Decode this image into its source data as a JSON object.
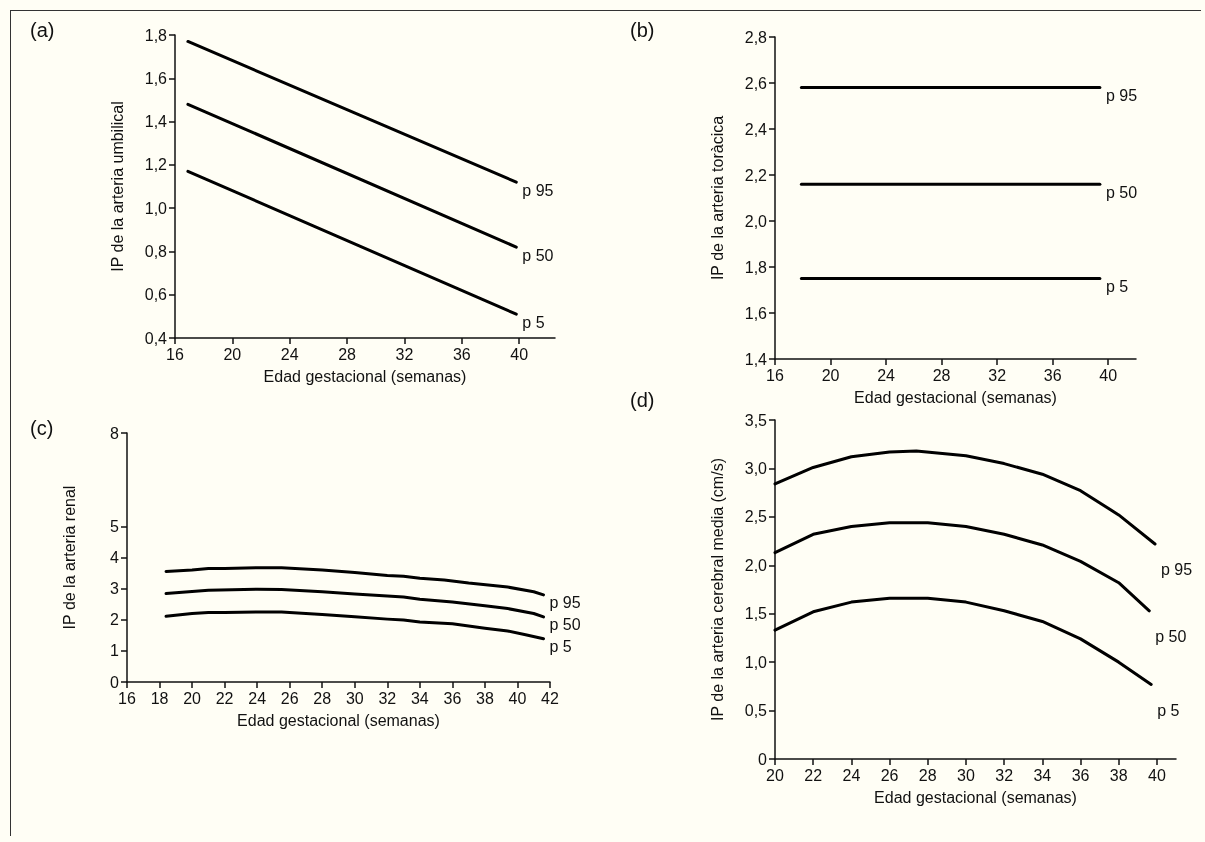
{
  "chart_data": [
    {
      "type": "line",
      "title": "(a)",
      "xlabel": "Edad gestacional (semanas)",
      "ylabel": "IP de la arteria umbilical",
      "xlim": [
        16,
        42.5
      ],
      "xticks": [
        16,
        20,
        24,
        28,
        32,
        36,
        40
      ],
      "ylim": [
        0.4,
        1.8
      ],
      "yticks": [
        {
          "value": 0.4,
          "label": "0,4"
        },
        {
          "value": 0.6,
          "label": "0,6"
        },
        {
          "value": 0.8,
          "label": "0,8"
        },
        {
          "value": 1.0,
          "label": "1,0"
        },
        {
          "value": 1.2,
          "label": "1,2"
        },
        {
          "value": 1.4,
          "label": "1,4"
        },
        {
          "value": 1.6,
          "label": "1,6"
        },
        {
          "value": 1.8,
          "label": "1,8"
        }
      ],
      "grid": false,
      "legend": false,
      "marker": "none",
      "line_style": "solid",
      "series": [
        {
          "name": "p 95",
          "color": "#000000",
          "x": [
            16.9,
            39.8
          ],
          "values": [
            1.77,
            1.12
          ]
        },
        {
          "name": "p 50",
          "color": "#000000",
          "x": [
            16.9,
            39.8
          ],
          "values": [
            1.48,
            0.82
          ]
        },
        {
          "name": "p 5",
          "color": "#000000",
          "x": [
            16.9,
            39.8
          ],
          "values": [
            1.17,
            0.51
          ]
        }
      ]
    },
    {
      "type": "line",
      "title": "(b)",
      "xlabel": "Edad gestacional (semanas)",
      "ylabel": "IP de la arteria toràcica",
      "xlim": [
        16,
        42
      ],
      "xticks": [
        16,
        20,
        24,
        28,
        32,
        36,
        40
      ],
      "ylim": [
        1.4,
        2.8
      ],
      "yticks": [
        {
          "value": 1.4,
          "label": "1,4"
        },
        {
          "value": 1.6,
          "label": "1,6"
        },
        {
          "value": 1.8,
          "label": "1,8"
        },
        {
          "value": 2.0,
          "label": "2,0"
        },
        {
          "value": 2.2,
          "label": "2,2"
        },
        {
          "value": 2.4,
          "label": "2,4"
        },
        {
          "value": 2.6,
          "label": "2,6"
        },
        {
          "value": 2.8,
          "label": "2,8"
        }
      ],
      "grid": false,
      "legend": false,
      "marker": "none",
      "line_style": "solid",
      "series": [
        {
          "name": "p 95",
          "color": "#000000",
          "x": [
            17.9,
            39.4
          ],
          "values": [
            2.58,
            2.58
          ]
        },
        {
          "name": "p 50",
          "color": "#000000",
          "x": [
            17.9,
            39.4
          ],
          "values": [
            2.16,
            2.16
          ]
        },
        {
          "name": "p 5",
          "color": "#000000",
          "x": [
            17.9,
            39.4
          ],
          "values": [
            1.75,
            1.75
          ]
        }
      ]
    },
    {
      "type": "line",
      "title": "(c)",
      "xlabel": "Edad gestacional (semanas)",
      "ylabel": "IP de la arteria renal",
      "xlim": [
        16,
        42
      ],
      "xticks": [
        16,
        18,
        20,
        22,
        24,
        26,
        28,
        30,
        32,
        34,
        36,
        38,
        40,
        42
      ],
      "ylim": [
        0,
        8
      ],
      "yticks": [
        0,
        1,
        2,
        3,
        4,
        5,
        8
      ],
      "grid": false,
      "legend": false,
      "marker": "none",
      "line_style": "solid",
      "series": [
        {
          "name": "p 95",
          "color": "#000000",
          "x": [
            18.4,
            20,
            21,
            22,
            24,
            25.5,
            28,
            30,
            32,
            33,
            34,
            35.5,
            37,
            39.4,
            41,
            41.6
          ],
          "values": [
            3.55,
            3.6,
            3.65,
            3.65,
            3.67,
            3.67,
            3.6,
            3.52,
            3.42,
            3.4,
            3.33,
            3.28,
            3.18,
            3.05,
            2.9,
            2.8
          ]
        },
        {
          "name": "p 50",
          "color": "#000000",
          "x": [
            18.4,
            21,
            24,
            25.5,
            28,
            30,
            32,
            33,
            34,
            36,
            38,
            39.4,
            41,
            41.6
          ],
          "values": [
            2.84,
            2.95,
            2.98,
            2.97,
            2.9,
            2.83,
            2.76,
            2.73,
            2.66,
            2.57,
            2.45,
            2.36,
            2.2,
            2.09
          ]
        },
        {
          "name": "p 5",
          "color": "#000000",
          "x": [
            18.4,
            20,
            21,
            22,
            24,
            25.5,
            28,
            30,
            32,
            33,
            34,
            36,
            38,
            39.4,
            40.5,
            41.6
          ],
          "values": [
            2.11,
            2.2,
            2.23,
            2.23,
            2.25,
            2.25,
            2.17,
            2.1,
            2.02,
            1.99,
            1.93,
            1.87,
            1.73,
            1.64,
            1.52,
            1.39
          ]
        }
      ]
    },
    {
      "type": "line",
      "title": "(d)",
      "xlabel": "Edad gestacional (semanas)",
      "ylabel": "IP de la arteria cerebral media (cm/s)",
      "xlim": [
        20,
        41
      ],
      "xticks": [
        20,
        22,
        24,
        28,
        26,
        30,
        32,
        34,
        36,
        38,
        40
      ],
      "ylim": [
        0,
        3.5
      ],
      "yticks": [
        0,
        {
          "value": 0.5,
          "label": "0,5"
        },
        {
          "value": 1.0,
          "label": "1,0"
        },
        {
          "value": 1.5,
          "label": "1,5"
        },
        {
          "value": 2.0,
          "label": "2,0"
        },
        {
          "value": 2.5,
          "label": "2,5"
        },
        {
          "value": 3.0,
          "label": "3,0"
        },
        {
          "value": 3.5,
          "label": "3,5"
        }
      ],
      "grid": false,
      "legend": false,
      "marker": "none",
      "line_style": "solid",
      "series": [
        {
          "name": "p 95",
          "color": "#000000",
          "x": [
            20,
            22,
            24,
            26,
            27.4,
            30,
            32,
            34,
            36,
            38,
            39.9
          ],
          "values": [
            2.84,
            3.01,
            3.12,
            3.17,
            3.18,
            3.13,
            3.05,
            2.94,
            2.77,
            2.52,
            2.22
          ]
        },
        {
          "name": "p 50",
          "color": "#000000",
          "x": [
            20,
            22,
            24,
            26,
            28,
            30,
            32,
            34,
            36,
            38,
            39.6
          ],
          "values": [
            2.13,
            2.32,
            2.4,
            2.44,
            2.44,
            2.4,
            2.32,
            2.21,
            2.04,
            1.82,
            1.53
          ]
        },
        {
          "name": "p 5",
          "color": "#000000",
          "x": [
            20,
            22,
            24,
            26,
            28,
            30,
            32,
            34,
            36,
            38,
            39.7
          ],
          "values": [
            1.33,
            1.52,
            1.62,
            1.66,
            1.66,
            1.62,
            1.53,
            1.42,
            1.24,
            1.0,
            0.77
          ]
        }
      ]
    }
  ]
}
